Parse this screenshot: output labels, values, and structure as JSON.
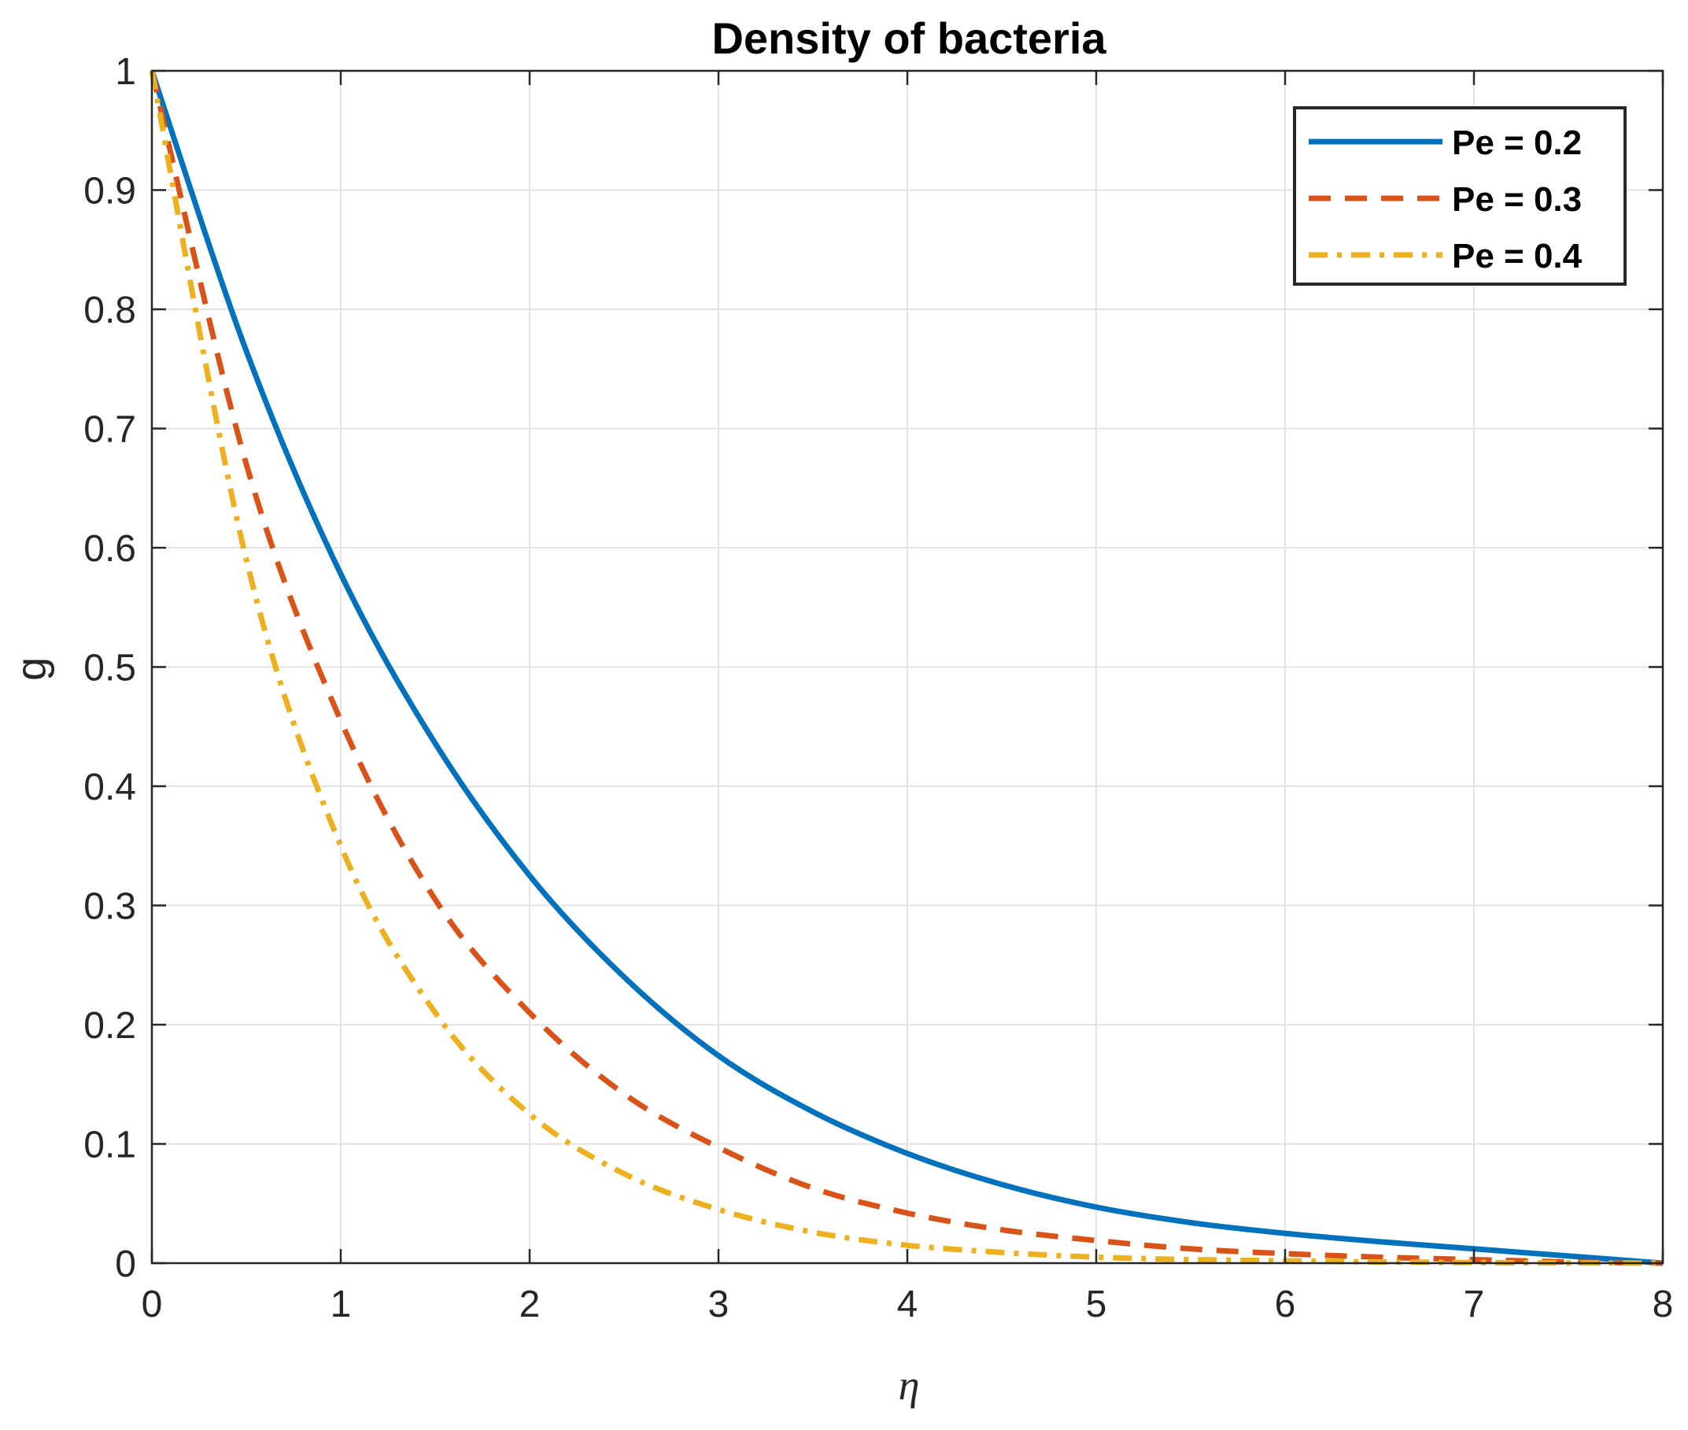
{
  "chart_data": {
    "type": "line",
    "title": "Density of bacteria",
    "xlabel": "η",
    "ylabel": "g",
    "xlim": [
      0,
      8
    ],
    "ylim": [
      0,
      1
    ],
    "xticks": [
      0,
      1,
      2,
      3,
      4,
      5,
      6,
      7,
      8
    ],
    "xtick_labels": [
      "0",
      "1",
      "2",
      "3",
      "4",
      "5",
      "6",
      "7",
      "8"
    ],
    "yticks": [
      0,
      0.1,
      0.2,
      0.3,
      0.4,
      0.5,
      0.6,
      0.7,
      0.8,
      0.9,
      1
    ],
    "ytick_labels": [
      "0",
      "0.1",
      "0.2",
      "0.3",
      "0.4",
      "0.5",
      "0.6",
      "0.7",
      "0.8",
      "0.9",
      "1"
    ],
    "grid": true,
    "legend_position": "top-right",
    "x": [
      0,
      0.5,
      1,
      1.5,
      2,
      2.5,
      3,
      3.5,
      4,
      4.5,
      5,
      5.5,
      6,
      6.5,
      7,
      7.5,
      8
    ],
    "series": [
      {
        "name": "Pe = 0.2",
        "color": "#0072BD",
        "line_style": "solid",
        "values": [
          1.0,
          0.765,
          0.578,
          0.436,
          0.325,
          0.24,
          0.174,
          0.127,
          0.092,
          0.066,
          0.047,
          0.034,
          0.025,
          0.018,
          0.012,
          0.006,
          0.0
        ]
      },
      {
        "name": "Pe = 0.3",
        "color": "#D95319",
        "line_style": "dashed",
        "values": [
          1.0,
          0.67,
          0.455,
          0.305,
          0.21,
          0.142,
          0.097,
          0.063,
          0.042,
          0.028,
          0.019,
          0.012,
          0.008,
          0.005,
          0.003,
          0.001,
          0.0
        ]
      },
      {
        "name": "Pe = 0.4",
        "color": "#EDB120",
        "line_style": "dashdot",
        "values": [
          1.0,
          0.59,
          0.35,
          0.21,
          0.125,
          0.075,
          0.045,
          0.026,
          0.015,
          0.009,
          0.005,
          0.003,
          0.002,
          0.001,
          0.0005,
          0.0002,
          0.0
        ]
      }
    ]
  }
}
